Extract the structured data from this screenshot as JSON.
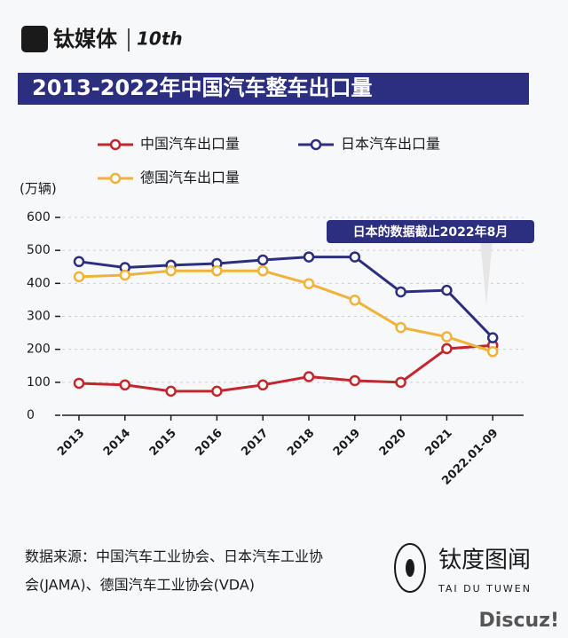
{
  "header": {
    "brand": "钛媒体",
    "anniversary": "10th"
  },
  "chart_data": {
    "type": "line",
    "title": "2013-2022年中国汽车整车出口量",
    "y_label": "(万辆)",
    "categories": [
      "2013",
      "2014",
      "2015",
      "2016",
      "2017",
      "2018",
      "2019",
      "2020",
      "2021",
      "2022.01-09"
    ],
    "series": [
      {
        "name": "中国汽车出口量",
        "color": "#c1272d",
        "values": [
          97,
          92,
          73,
          73,
          92,
          117,
          105,
          100,
          202,
          212
        ]
      },
      {
        "name": "日本汽车出口量",
        "color": "#2c2e80",
        "values": [
          466,
          448,
          455,
          460,
          471,
          480,
          480,
          374,
          379,
          235
        ]
      },
      {
        "name": "德国汽车出口量",
        "color": "#f0b23a",
        "values": [
          420,
          425,
          438,
          438,
          438,
          399,
          349,
          266,
          238,
          193
        ]
      }
    ],
    "ylim": [
      0,
      600
    ],
    "yticks": [
      0,
      100,
      200,
      300,
      400,
      500,
      600
    ],
    "grid": true,
    "annotation": "日本的数据截止2022年8月"
  },
  "footer": {
    "source_lines": [
      "数据来源：中国汽车工业协会、日本汽车工业协",
      "会(JAMA)、德国汽车工业协会(VDA)"
    ],
    "logo": "钛度图闻",
    "logo_sub": "TAI DU TUWEN"
  },
  "watermark": "Discuz!"
}
